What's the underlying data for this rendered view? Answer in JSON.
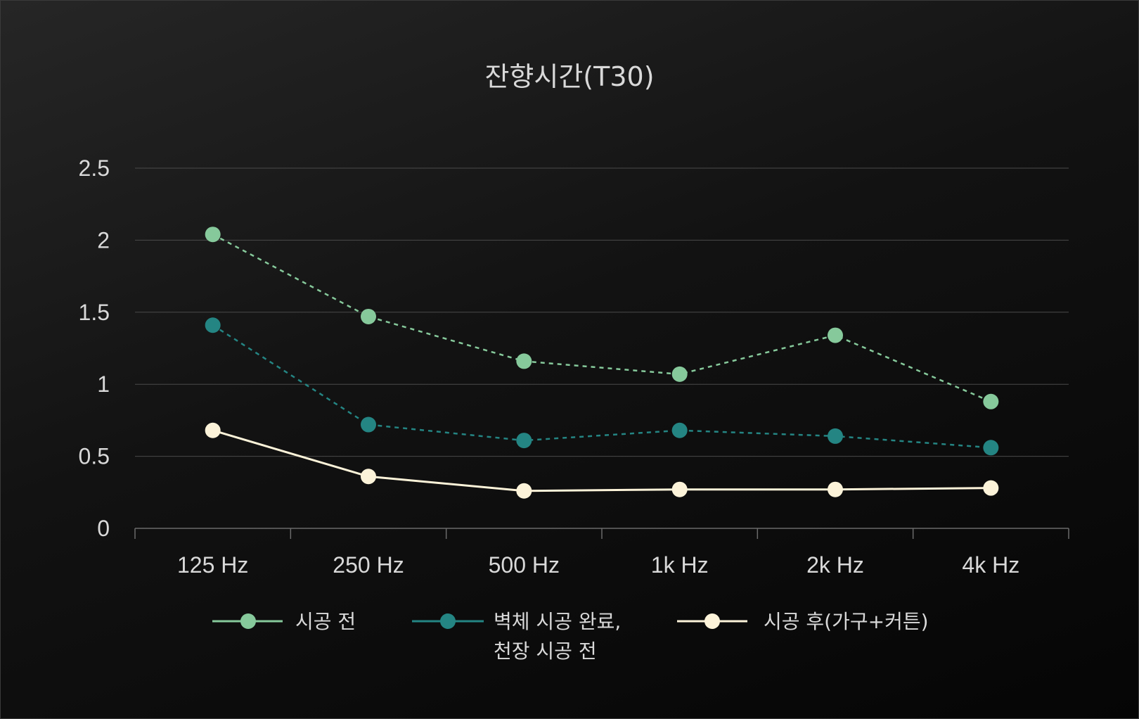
{
  "chart_data": {
    "type": "line",
    "title": "잔향시간(T30)",
    "categories": [
      "125 Hz",
      "250 Hz",
      "500 Hz",
      "1k Hz",
      "2k Hz",
      "4k Hz"
    ],
    "ylim": [
      0,
      2.5
    ],
    "yticks": [
      "0",
      "0.5",
      "1",
      "1.5",
      "2",
      "2.5"
    ],
    "grid": true,
    "legend_position": "bottom",
    "series": [
      {
        "name": "시공 전",
        "values": [
          2.04,
          1.47,
          1.16,
          1.07,
          1.34,
          0.88
        ],
        "color": "#86c99b",
        "line_style": "dotted"
      },
      {
        "name": "벽체 시공 완료,\n천장 시공 전",
        "name_lines": [
          "벽체 시공 완료,",
          "천장 시공 전"
        ],
        "values": [
          1.41,
          0.72,
          0.61,
          0.68,
          0.64,
          0.56
        ],
        "color": "#248583",
        "line_style": "dotted"
      },
      {
        "name": "시공 후(가구+커튼)",
        "values": [
          0.68,
          0.36,
          0.26,
          0.27,
          0.27,
          0.28
        ],
        "color": "#fcf3d9",
        "line_style": "solid"
      }
    ]
  },
  "colors": {
    "gridline": "#4a4a4a",
    "axis": "#6a6a6a",
    "text": "#d9d9d9"
  }
}
